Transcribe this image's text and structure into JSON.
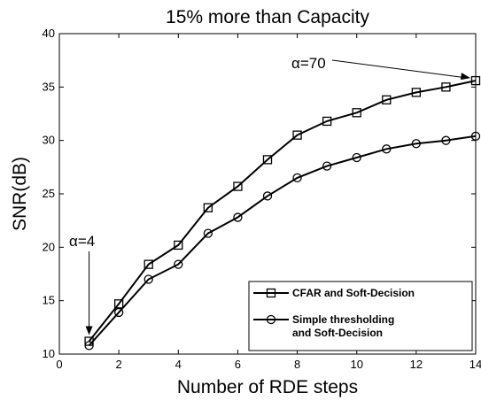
{
  "chart_data": {
    "type": "line",
    "title": "15% more than Capacity",
    "xlabel": "Number of RDE steps",
    "ylabel": "SNR(dB)",
    "xlim": [
      0,
      14
    ],
    "ylim": [
      10,
      40
    ],
    "xticks": [
      0,
      2,
      4,
      6,
      8,
      10,
      12,
      14
    ],
    "yticks": [
      10,
      15,
      20,
      25,
      30,
      35,
      40
    ],
    "grid": false,
    "legend_position": "bottom-right",
    "x": [
      1,
      2,
      3,
      4,
      5,
      6,
      7,
      8,
      9,
      10,
      11,
      12,
      13,
      14
    ],
    "series": [
      {
        "name": "CFAR and Soft-Decision",
        "marker": "square",
        "values": [
          11.2,
          14.7,
          18.4,
          20.2,
          23.7,
          25.7,
          28.2,
          30.5,
          31.8,
          32.6,
          33.8,
          34.5,
          35.0,
          35.6
        ]
      },
      {
        "name_lines": [
          "Simple thresholding",
          "and Soft-Decision"
        ],
        "marker": "circle",
        "values": [
          10.8,
          13.9,
          17.0,
          18.4,
          21.3,
          22.8,
          24.8,
          26.5,
          27.6,
          28.4,
          29.2,
          29.7,
          30.0,
          30.4
        ]
      }
    ],
    "annotations": [
      {
        "text": "α=4",
        "x": 1,
        "y": 11.2
      },
      {
        "text": "α=70",
        "x": 14,
        "y": 35.6
      }
    ]
  }
}
